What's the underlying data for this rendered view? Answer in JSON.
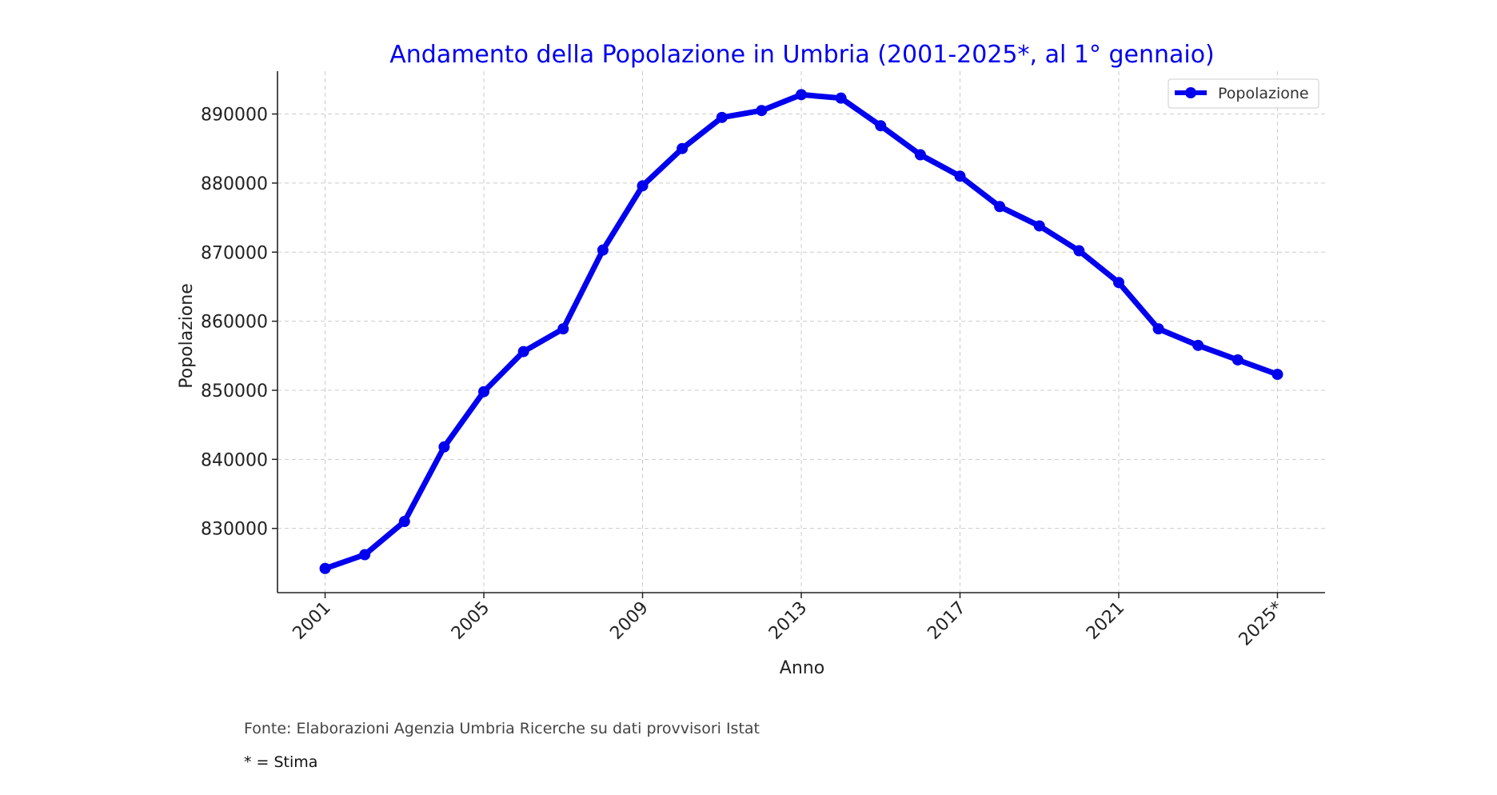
{
  "chart_data": {
    "type": "line",
    "title": "Andamento della Popolazione in Umbria (2001-2025*, al 1° gennaio)",
    "xlabel": "Anno",
    "ylabel": "Popolazione",
    "x": [
      2001,
      2002,
      2003,
      2004,
      2005,
      2006,
      2007,
      2008,
      2009,
      2010,
      2011,
      2012,
      2013,
      2014,
      2015,
      2016,
      2017,
      2018,
      2019,
      2020,
      2021,
      2022,
      2023,
      2024,
      2025
    ],
    "x_ticks": [
      2001,
      2005,
      2009,
      2013,
      2017,
      2021,
      2025
    ],
    "x_tick_labels": [
      "2001",
      "2005",
      "2009",
      "2013",
      "2017",
      "2021",
      "2025*"
    ],
    "y_ticks": [
      830000,
      840000,
      850000,
      860000,
      870000,
      880000,
      890000
    ],
    "y_tick_labels": [
      "830000",
      "840000",
      "850000",
      "860000",
      "870000",
      "880000",
      "890000"
    ],
    "xlim": [
      1999.8,
      2026.2
    ],
    "ylim": [
      820700,
      896200
    ],
    "series": [
      {
        "name": "Popolazione",
        "color": "#0000ee",
        "values": [
          824200,
          826200,
          831000,
          841800,
          849800,
          855600,
          858900,
          870300,
          879600,
          885000,
          889500,
          890500,
          892800,
          892300,
          888300,
          884100,
          881000,
          876600,
          873800,
          870200,
          865600,
          858900,
          856500,
          854400,
          852300
        ]
      }
    ],
    "grid": true,
    "legend_position": "top-right"
  },
  "footer": {
    "source": "Fonte: Elaborazioni Agenzia Umbria Ricerche su dati provvisori Istat",
    "note": "* = Stima"
  }
}
